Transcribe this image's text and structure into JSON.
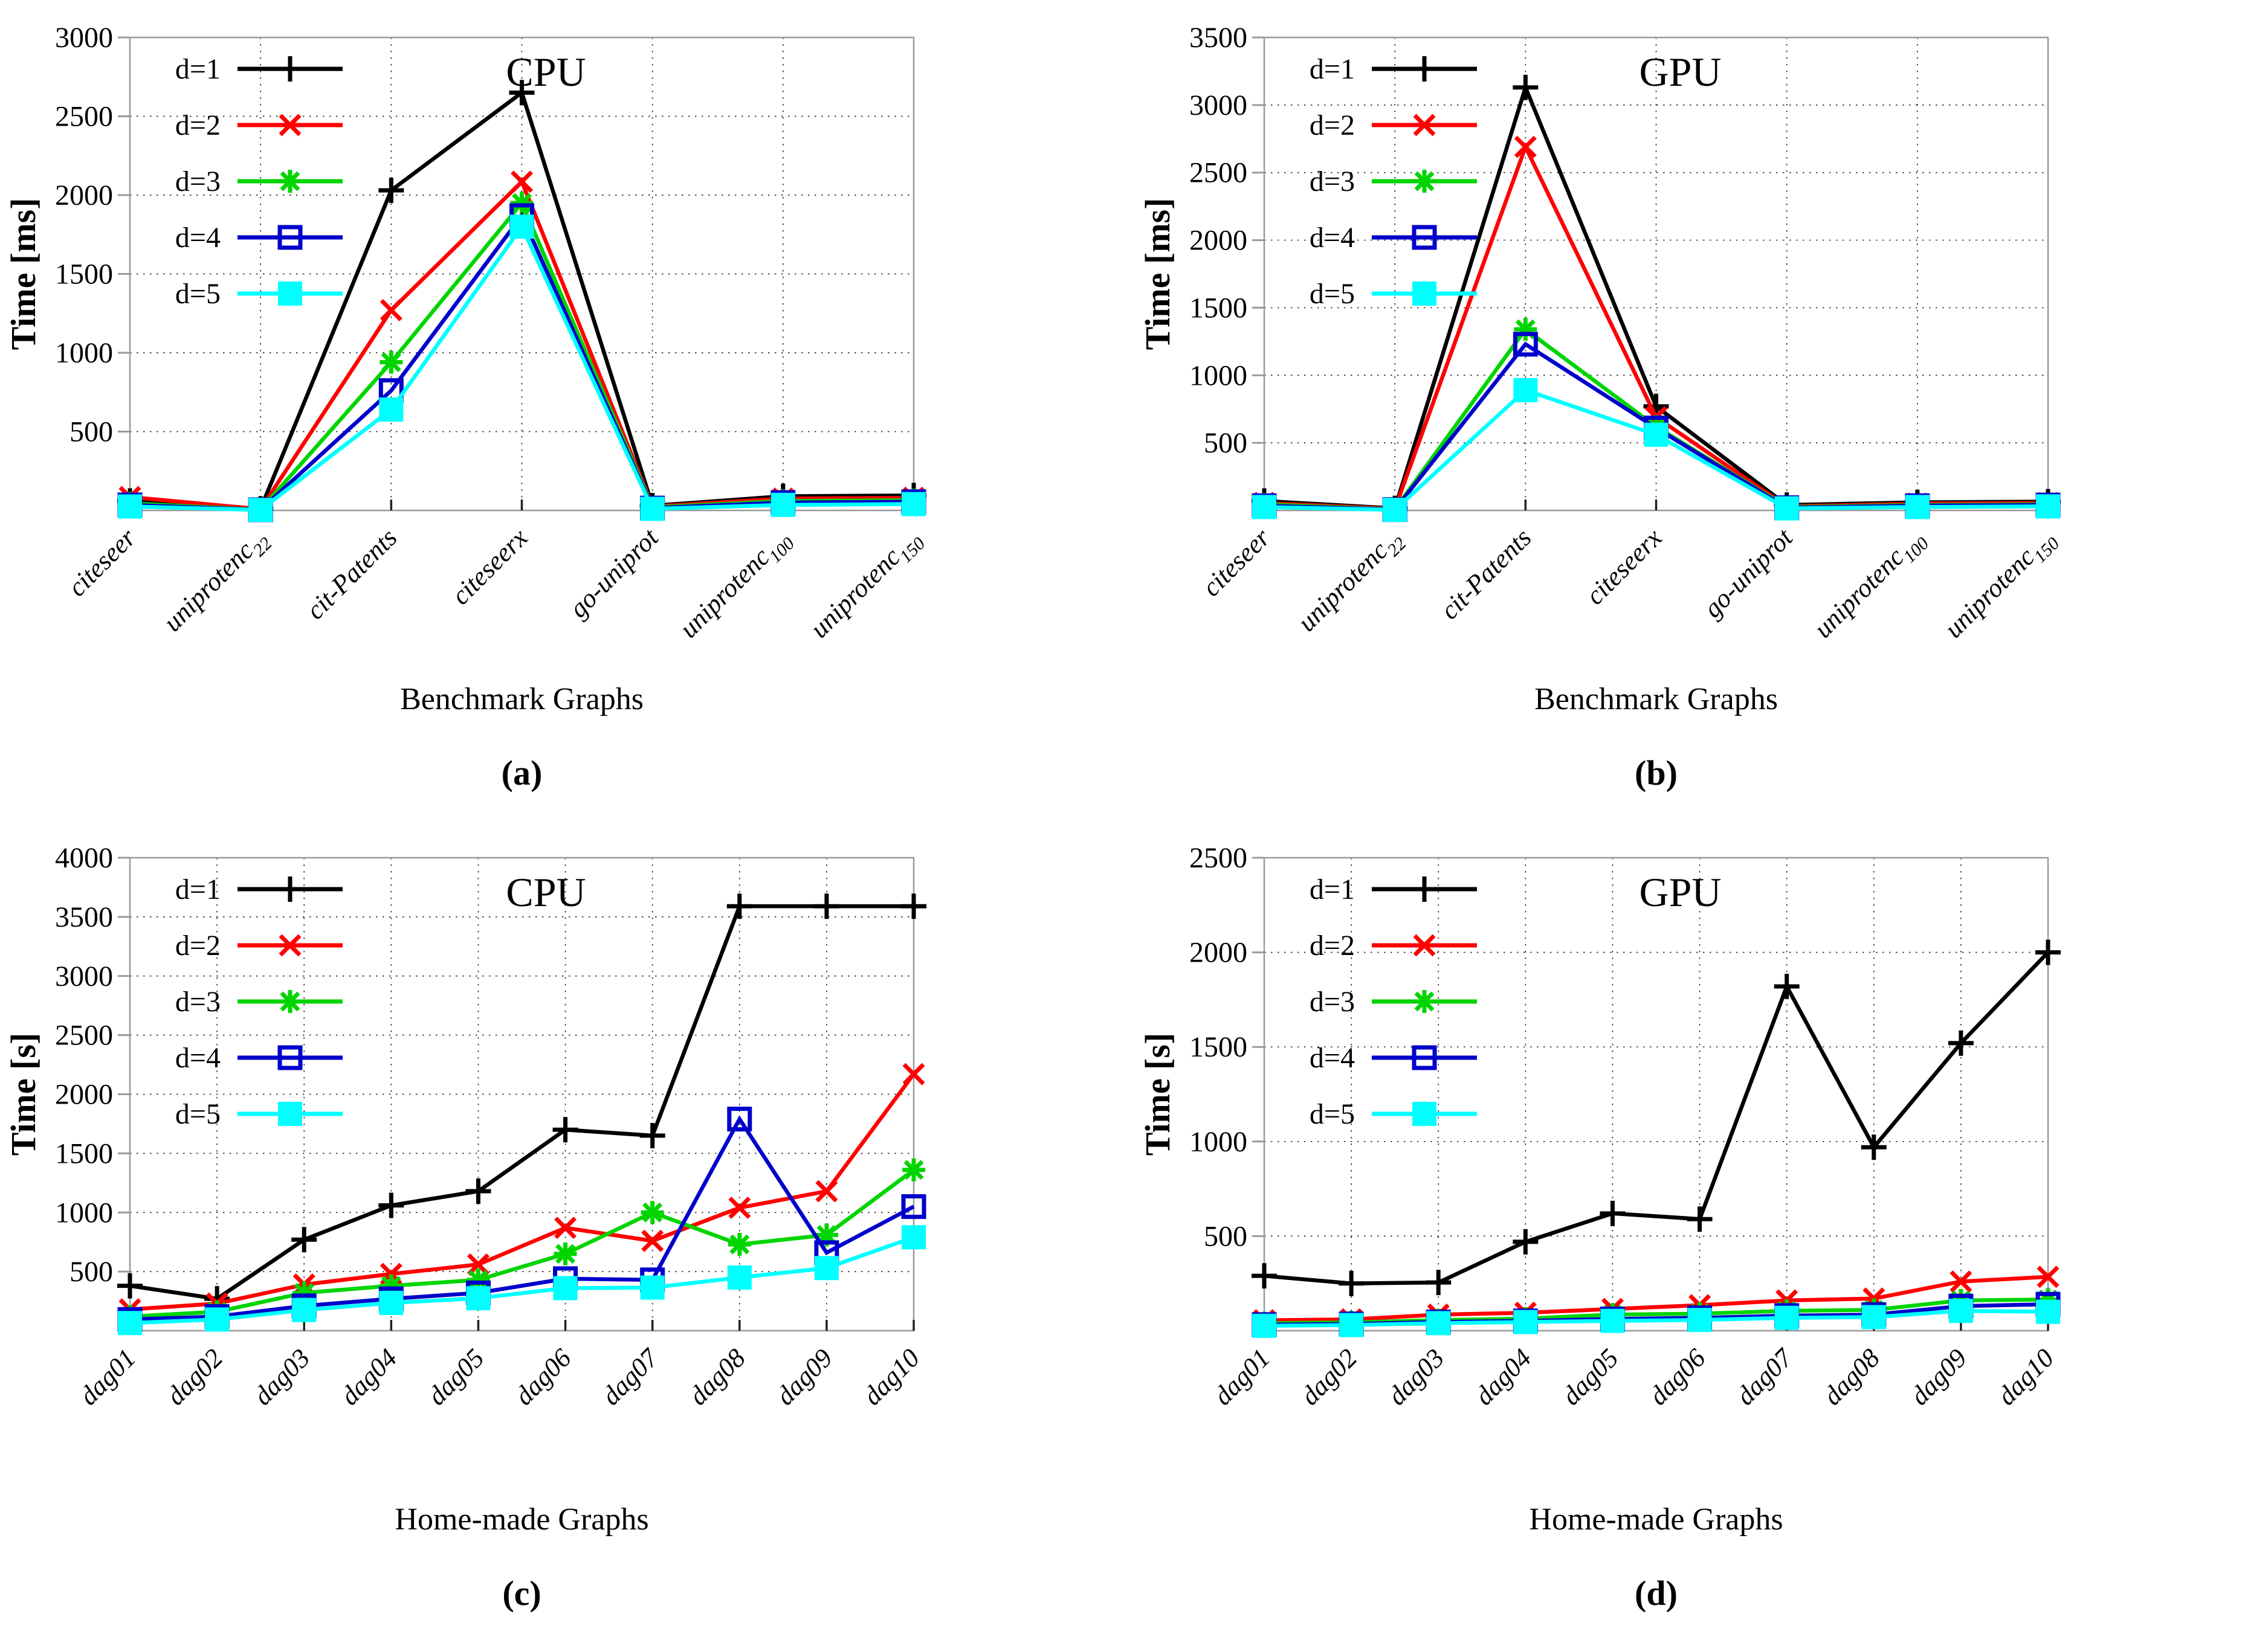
{
  "page": {
    "background": "#ffffff"
  },
  "colors": {
    "d1": "#000000",
    "d2": "#ff0000",
    "d3": "#00d500",
    "d4": "#0000cc",
    "d5": "#00ffff",
    "plot_border": "#9a9a9a",
    "grid_dots": "#333333"
  },
  "chart_data": [
    {
      "type": "line",
      "title": "CPU",
      "ylabel": "Time [ms]",
      "xlabel": "Benchmark Graphs",
      "caption": "(a)",
      "ylim": [
        0,
        3000
      ],
      "ytick_step": 500,
      "ytick_labels": [
        "500",
        "1000",
        "1500",
        "2000",
        "2500",
        "3000"
      ],
      "grid": true,
      "legend_position": "top-left",
      "categories": [
        "citeseer",
        "uniprotenc|22",
        "cit-Patents",
        "citeseerx",
        "go-uniprot",
        "uniprotenc|100",
        "uniprotenc|150"
      ],
      "series": [
        {
          "name": "d=1",
          "color": "#000000",
          "marker": "plus",
          "values": [
            60,
            10,
            2030,
            2650,
            30,
            90,
            95
          ]
        },
        {
          "name": "d=2",
          "color": "#ff0000",
          "marker": "cross",
          "values": [
            85,
            8,
            1270,
            2085,
            25,
            75,
            80
          ]
        },
        {
          "name": "d=3",
          "color": "#00d500",
          "marker": "asterisk",
          "values": [
            45,
            5,
            940,
            1950,
            20,
            60,
            65
          ]
        },
        {
          "name": "d=4",
          "color": "#0000cc",
          "marker": "square-open",
          "values": [
            35,
            4,
            760,
            1870,
            15,
            50,
            55
          ]
        },
        {
          "name": "d=5",
          "color": "#00ffff",
          "marker": "square-filled",
          "values": [
            25,
            3,
            640,
            1800,
            10,
            35,
            40
          ]
        }
      ]
    },
    {
      "type": "line",
      "title": "GPU",
      "ylabel": "Time [ms]",
      "xlabel": "Benchmark Graphs",
      "caption": "(b)",
      "ylim": [
        0,
        3500
      ],
      "ytick_step": 500,
      "ytick_labels": [
        "500",
        "1000",
        "1500",
        "2000",
        "2500",
        "3000",
        "3500"
      ],
      "grid": true,
      "legend_position": "top-left",
      "categories": [
        "citeseer",
        "uniprotenc|22",
        "cit-Patents",
        "citeseerx",
        "go-uniprot",
        "uniprotenc|100",
        "uniprotenc|150"
      ],
      "series": [
        {
          "name": "d=1",
          "color": "#000000",
          "marker": "plus",
          "values": [
            70,
            15,
            3130,
            770,
            40,
            60,
            65
          ]
        },
        {
          "name": "d=2",
          "color": "#ff0000",
          "marker": "cross",
          "values": [
            55,
            12,
            2690,
            690,
            30,
            50,
            55
          ]
        },
        {
          "name": "d=3",
          "color": "#00d500",
          "marker": "asterisk",
          "values": [
            45,
            8,
            1340,
            620,
            25,
            40,
            45
          ]
        },
        {
          "name": "d=4",
          "color": "#0000cc",
          "marker": "square-open",
          "values": [
            35,
            6,
            1230,
            610,
            20,
            35,
            40
          ]
        },
        {
          "name": "d=5",
          "color": "#00ffff",
          "marker": "square-filled",
          "values": [
            25,
            4,
            890,
            560,
            15,
            25,
            30
          ]
        }
      ]
    },
    {
      "type": "line",
      "title": "CPU",
      "ylabel": "Time [s]",
      "xlabel": "Home-made Graphs",
      "caption": "(c)",
      "ylim": [
        0,
        4000
      ],
      "ytick_step": 500,
      "ytick_labels": [
        "500",
        "1000",
        "1500",
        "2000",
        "2500",
        "3000",
        "3500",
        "4000"
      ],
      "grid": true,
      "legend_position": "top-left",
      "categories": [
        "dag01",
        "dag02",
        "dag03",
        "dag04",
        "dag05",
        "dag06",
        "dag07",
        "dag08",
        "dag09",
        "dag10"
      ],
      "series": [
        {
          "name": "d=1",
          "color": "#000000",
          "marker": "plus",
          "values": [
            380,
            270,
            770,
            1060,
            1180,
            1700,
            1650,
            3590,
            3590,
            3590
          ]
        },
        {
          "name": "d=2",
          "color": "#ff0000",
          "marker": "cross",
          "values": [
            180,
            230,
            390,
            480,
            560,
            870,
            760,
            1040,
            1180,
            2170
          ]
        },
        {
          "name": "d=3",
          "color": "#00d500",
          "marker": "asterisk",
          "values": [
            120,
            160,
            320,
            380,
            430,
            650,
            1000,
            730,
            810,
            1360
          ]
        },
        {
          "name": "d=4",
          "color": "#0000cc",
          "marker": "square-open",
          "values": [
            95,
            120,
            210,
            270,
            320,
            440,
            430,
            1790,
            660,
            1050
          ]
        },
        {
          "name": "d=5",
          "color": "#00ffff",
          "marker": "square-filled",
          "values": [
            65,
            95,
            175,
            235,
            275,
            360,
            365,
            450,
            530,
            790
          ]
        }
      ]
    },
    {
      "type": "line",
      "title": "GPU",
      "ylabel": "Time [s]",
      "xlabel": "Home-made Graphs",
      "caption": "(d)",
      "ylim": [
        0,
        2500
      ],
      "ytick_step": 500,
      "ytick_labels": [
        "500",
        "1000",
        "1500",
        "2000",
        "2500"
      ],
      "grid": true,
      "legend_position": "top-left",
      "categories": [
        "dag01",
        "dag02",
        "dag03",
        "dag04",
        "dag05",
        "dag06",
        "dag07",
        "dag08",
        "dag09",
        "dag10"
      ],
      "series": [
        {
          "name": "d=1",
          "color": "#000000",
          "marker": "plus",
          "values": [
            290,
            250,
            255,
            470,
            620,
            590,
            1820,
            970,
            1520,
            2000
          ]
        },
        {
          "name": "d=2",
          "color": "#ff0000",
          "marker": "cross",
          "values": [
            55,
            60,
            85,
            95,
            115,
            135,
            160,
            170,
            260,
            285
          ]
        },
        {
          "name": "d=3",
          "color": "#00d500",
          "marker": "asterisk",
          "values": [
            40,
            44,
            56,
            64,
            85,
            90,
            105,
            110,
            160,
            165
          ]
        },
        {
          "name": "d=4",
          "color": "#0000cc",
          "marker": "square-open",
          "values": [
            32,
            36,
            46,
            52,
            62,
            68,
            80,
            85,
            130,
            140
          ]
        },
        {
          "name": "d=5",
          "color": "#00ffff",
          "marker": "square-filled",
          "values": [
            26,
            30,
            40,
            46,
            52,
            57,
            68,
            72,
            105,
            100
          ]
        }
      ]
    }
  ]
}
